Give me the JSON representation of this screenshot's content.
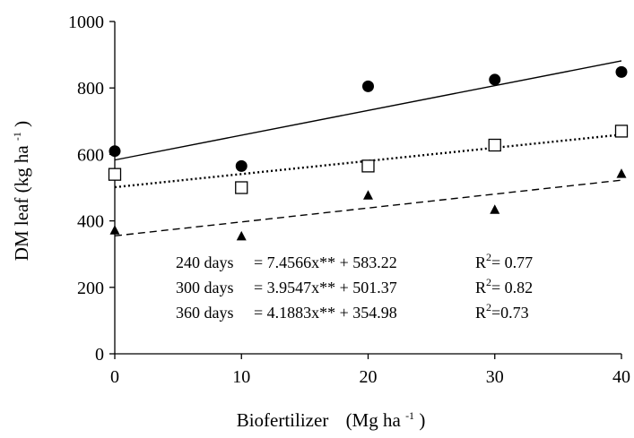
{
  "chart_data": {
    "type": "scatter",
    "xlabel": "Biofertilizer",
    "xlabel_unit_prefix": "(Mg ha",
    "xlabel_unit_exp": "-1",
    "xlabel_unit_suffix": ")",
    "ylabel": "DM leaf",
    "ylabel_unit_prefix": "(kg ha",
    "ylabel_unit_exp": "-1",
    "ylabel_unit_suffix": ")",
    "xlim": [
      0,
      40
    ],
    "ylim": [
      0,
      1000
    ],
    "x_ticks": [
      0,
      10,
      20,
      30,
      40
    ],
    "y_ticks": [
      0,
      200,
      400,
      600,
      800,
      1000
    ],
    "grid": false,
    "series": [
      {
        "name": "240 days",
        "marker": "filled-circle",
        "line_style": "solid",
        "x": [
          0,
          10,
          20,
          30,
          40
        ],
        "y": [
          610,
          565,
          805,
          825,
          848
        ],
        "fit": {
          "slope": 7.4566,
          "intercept": 583.22
        }
      },
      {
        "name": "300 days",
        "marker": "open-square",
        "line_style": "dotted",
        "x": [
          0,
          10,
          20,
          30,
          40
        ],
        "y": [
          540,
          500,
          565,
          628,
          670
        ],
        "fit": {
          "slope": 3.9547,
          "intercept": 501.37
        }
      },
      {
        "name": "360 days",
        "marker": "filled-triangle",
        "line_style": "dashed",
        "x": [
          0,
          10,
          20,
          30,
          40
        ],
        "y": [
          370,
          352,
          475,
          432,
          540
        ],
        "fit": {
          "slope": 4.1883,
          "intercept": 354.98
        }
      }
    ],
    "equations": [
      {
        "label": "240 days",
        "formula": "= 7.4566x** + 583.22",
        "r2_label": "R",
        "r2_exp": "2",
        "r2_value": "= 0.77"
      },
      {
        "label": "300 days",
        "formula": "= 3.9547x** + 501.37",
        "r2_label": "R",
        "r2_exp": "2",
        "r2_value": "= 0.82"
      },
      {
        "label": "360 days",
        "formula": "= 4.1883x** + 354.98",
        "r2_label": "R",
        "r2_exp": "2",
        "r2_value": "=0.73"
      }
    ],
    "colors": {
      "axis": "#000000",
      "marks": "#000000",
      "background": "#ffffff"
    }
  }
}
